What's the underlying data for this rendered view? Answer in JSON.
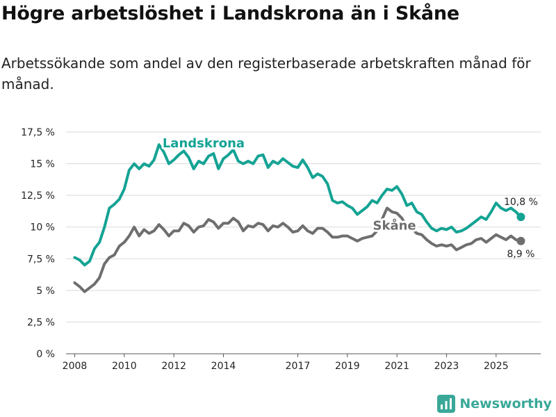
{
  "title": "Högre arbetslöshet i Landskrona än i Skåne",
  "subtitle": "Arbetssökande som andel av den registerbaserade arbetskraften månad för månad.",
  "brand": "Newsworthy",
  "colors": {
    "landskrona": "#14a394",
    "skane": "#6e6e70",
    "grid": "#d9d9d9"
  },
  "chart_data": {
    "type": "line",
    "xlabel": "",
    "ylabel": "",
    "xlim": [
      2007.65,
      2026.8
    ],
    "ylim": [
      0,
      17.5
    ],
    "grid": true,
    "y_ticks": [
      {
        "value": 0,
        "label": "0 %"
      },
      {
        "value": 2.5,
        "label": "2,5 %"
      },
      {
        "value": 5,
        "label": "5 %"
      },
      {
        "value": 7.5,
        "label": "7,5 %"
      },
      {
        "value": 10,
        "label": "10 %"
      },
      {
        "value": 12.5,
        "label": "12,5 %"
      },
      {
        "value": 15,
        "label": "15 %"
      },
      {
        "value": 17.5,
        "label": "17,5 %"
      }
    ],
    "x_ticks": [
      {
        "value": 2008,
        "label": "2008"
      },
      {
        "value": 2010,
        "label": "2010"
      },
      {
        "value": 2012,
        "label": "2012"
      },
      {
        "value": 2014,
        "label": "2014"
      },
      {
        "value": 2017,
        "label": "2017"
      },
      {
        "value": 2019,
        "label": "2019"
      },
      {
        "value": 2021,
        "label": "2021"
      },
      {
        "value": 2023,
        "label": "2023"
      },
      {
        "value": 2025,
        "label": "2025"
      }
    ],
    "series": [
      {
        "name": "Landskrona",
        "label": "Landskrona",
        "label_at": {
          "x": 2013.2,
          "y": 16.3
        },
        "end_label": "10,8 %",
        "points": [
          [
            2008.0,
            7.6
          ],
          [
            2008.2,
            7.4
          ],
          [
            2008.4,
            7.0
          ],
          [
            2008.6,
            7.3
          ],
          [
            2008.8,
            8.3
          ],
          [
            2009.0,
            8.8
          ],
          [
            2009.2,
            10.0
          ],
          [
            2009.4,
            11.5
          ],
          [
            2009.6,
            11.8
          ],
          [
            2009.8,
            12.2
          ],
          [
            2010.0,
            13.0
          ],
          [
            2010.2,
            14.5
          ],
          [
            2010.4,
            15.0
          ],
          [
            2010.6,
            14.6
          ],
          [
            2010.8,
            15.0
          ],
          [
            2011.0,
            14.8
          ],
          [
            2011.2,
            15.3
          ],
          [
            2011.4,
            16.5
          ],
          [
            2011.6,
            15.9
          ],
          [
            2011.8,
            15.0
          ],
          [
            2012.0,
            15.3
          ],
          [
            2012.2,
            15.7
          ],
          [
            2012.4,
            16.0
          ],
          [
            2012.6,
            15.5
          ],
          [
            2012.8,
            14.6
          ],
          [
            2013.0,
            15.2
          ],
          [
            2013.2,
            15.0
          ],
          [
            2013.4,
            15.6
          ],
          [
            2013.6,
            15.8
          ],
          [
            2013.8,
            14.6
          ],
          [
            2014.0,
            15.4
          ],
          [
            2014.2,
            15.7
          ],
          [
            2014.4,
            16.1
          ],
          [
            2014.6,
            15.2
          ],
          [
            2014.8,
            15.0
          ],
          [
            2015.0,
            15.2
          ],
          [
            2015.2,
            15.0
          ],
          [
            2015.4,
            15.6
          ],
          [
            2015.6,
            15.7
          ],
          [
            2015.8,
            14.7
          ],
          [
            2016.0,
            15.2
          ],
          [
            2016.2,
            15.0
          ],
          [
            2016.4,
            15.4
          ],
          [
            2016.6,
            15.1
          ],
          [
            2016.8,
            14.8
          ],
          [
            2017.0,
            14.7
          ],
          [
            2017.2,
            15.3
          ],
          [
            2017.4,
            14.7
          ],
          [
            2017.6,
            13.9
          ],
          [
            2017.8,
            14.2
          ],
          [
            2018.0,
            14.0
          ],
          [
            2018.2,
            13.4
          ],
          [
            2018.4,
            12.1
          ],
          [
            2018.6,
            11.9
          ],
          [
            2018.8,
            12.0
          ],
          [
            2019.0,
            11.7
          ],
          [
            2019.2,
            11.5
          ],
          [
            2019.4,
            11.0
          ],
          [
            2019.6,
            11.3
          ],
          [
            2019.8,
            11.6
          ],
          [
            2020.0,
            12.1
          ],
          [
            2020.2,
            11.9
          ],
          [
            2020.4,
            12.5
          ],
          [
            2020.6,
            13.0
          ],
          [
            2020.8,
            12.9
          ],
          [
            2021.0,
            13.2
          ],
          [
            2021.2,
            12.6
          ],
          [
            2021.4,
            11.7
          ],
          [
            2021.6,
            11.9
          ],
          [
            2021.8,
            11.2
          ],
          [
            2022.0,
            11.0
          ],
          [
            2022.2,
            10.4
          ],
          [
            2022.4,
            9.9
          ],
          [
            2022.6,
            9.7
          ],
          [
            2022.8,
            9.9
          ],
          [
            2023.0,
            9.8
          ],
          [
            2023.2,
            10.0
          ],
          [
            2023.4,
            9.6
          ],
          [
            2023.6,
            9.7
          ],
          [
            2023.8,
            9.9
          ],
          [
            2024.0,
            10.2
          ],
          [
            2024.2,
            10.5
          ],
          [
            2024.4,
            10.8
          ],
          [
            2024.6,
            10.6
          ],
          [
            2024.8,
            11.2
          ],
          [
            2025.0,
            11.9
          ],
          [
            2025.2,
            11.5
          ],
          [
            2025.4,
            11.3
          ],
          [
            2025.6,
            11.5
          ],
          [
            2025.8,
            11.2
          ],
          [
            2026.0,
            10.8
          ]
        ]
      },
      {
        "name": "Skåne",
        "label": "Skåne",
        "label_at": {
          "x": 2020.9,
          "y": 9.8
        },
        "end_label": "8,9 %",
        "points": [
          [
            2008.0,
            5.6
          ],
          [
            2008.2,
            5.3
          ],
          [
            2008.4,
            4.9
          ],
          [
            2008.6,
            5.2
          ],
          [
            2008.8,
            5.5
          ],
          [
            2009.0,
            6.0
          ],
          [
            2009.2,
            7.1
          ],
          [
            2009.4,
            7.6
          ],
          [
            2009.6,
            7.8
          ],
          [
            2009.8,
            8.5
          ],
          [
            2010.0,
            8.8
          ],
          [
            2010.2,
            9.3
          ],
          [
            2010.4,
            10.0
          ],
          [
            2010.6,
            9.3
          ],
          [
            2010.8,
            9.8
          ],
          [
            2011.0,
            9.5
          ],
          [
            2011.2,
            9.7
          ],
          [
            2011.4,
            10.2
          ],
          [
            2011.6,
            9.8
          ],
          [
            2011.8,
            9.3
          ],
          [
            2012.0,
            9.7
          ],
          [
            2012.2,
            9.7
          ],
          [
            2012.4,
            10.3
          ],
          [
            2012.6,
            10.1
          ],
          [
            2012.8,
            9.6
          ],
          [
            2013.0,
            10.0
          ],
          [
            2013.2,
            10.1
          ],
          [
            2013.4,
            10.6
          ],
          [
            2013.6,
            10.4
          ],
          [
            2013.8,
            9.9
          ],
          [
            2014.0,
            10.3
          ],
          [
            2014.2,
            10.3
          ],
          [
            2014.4,
            10.7
          ],
          [
            2014.6,
            10.4
          ],
          [
            2014.8,
            9.7
          ],
          [
            2015.0,
            10.1
          ],
          [
            2015.2,
            10.0
          ],
          [
            2015.4,
            10.3
          ],
          [
            2015.6,
            10.2
          ],
          [
            2015.8,
            9.7
          ],
          [
            2016.0,
            10.1
          ],
          [
            2016.2,
            10.0
          ],
          [
            2016.4,
            10.3
          ],
          [
            2016.6,
            10.0
          ],
          [
            2016.8,
            9.6
          ],
          [
            2017.0,
            9.7
          ],
          [
            2017.2,
            10.1
          ],
          [
            2017.4,
            9.7
          ],
          [
            2017.6,
            9.5
          ],
          [
            2017.8,
            9.9
          ],
          [
            2018.0,
            9.9
          ],
          [
            2018.2,
            9.6
          ],
          [
            2018.4,
            9.2
          ],
          [
            2018.6,
            9.2
          ],
          [
            2018.8,
            9.3
          ],
          [
            2019.0,
            9.3
          ],
          [
            2019.2,
            9.1
          ],
          [
            2019.4,
            8.9
          ],
          [
            2019.6,
            9.1
          ],
          [
            2019.8,
            9.2
          ],
          [
            2020.0,
            9.3
          ],
          [
            2020.2,
            9.7
          ],
          [
            2020.4,
            10.6
          ],
          [
            2020.6,
            11.5
          ],
          [
            2020.8,
            11.2
          ],
          [
            2021.0,
            11.1
          ],
          [
            2021.2,
            10.7
          ],
          [
            2021.4,
            10.0
          ],
          [
            2021.6,
            9.9
          ],
          [
            2021.8,
            9.5
          ],
          [
            2022.0,
            9.4
          ],
          [
            2022.2,
            9.0
          ],
          [
            2022.4,
            8.7
          ],
          [
            2022.6,
            8.5
          ],
          [
            2022.8,
            8.6
          ],
          [
            2023.0,
            8.5
          ],
          [
            2023.2,
            8.6
          ],
          [
            2023.4,
            8.2
          ],
          [
            2023.6,
            8.4
          ],
          [
            2023.8,
            8.6
          ],
          [
            2024.0,
            8.7
          ],
          [
            2024.2,
            9.0
          ],
          [
            2024.4,
            9.1
          ],
          [
            2024.6,
            8.8
          ],
          [
            2024.8,
            9.1
          ],
          [
            2025.0,
            9.4
          ],
          [
            2025.2,
            9.2
          ],
          [
            2025.4,
            9.0
          ],
          [
            2025.6,
            9.3
          ],
          [
            2025.8,
            9.0
          ],
          [
            2026.0,
            8.9
          ]
        ]
      }
    ]
  }
}
